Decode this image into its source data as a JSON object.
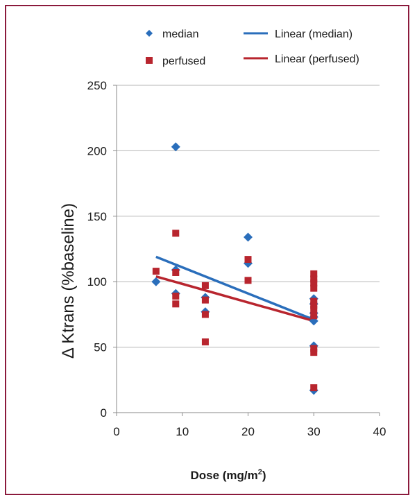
{
  "chart_data": {
    "type": "scatter",
    "xlabel": {
      "prefix": "Dose (mg/m",
      "sup": "2",
      "suffix": ")"
    },
    "ylabel": "Δ Ktrans (%baseline)",
    "xlim": [
      0,
      40
    ],
    "ylim": [
      0,
      250
    ],
    "xticks": [
      0,
      10,
      20,
      30,
      40
    ],
    "yticks": [
      0,
      50,
      100,
      150,
      200,
      250
    ],
    "grid": "horizontal",
    "legend_position": "top",
    "series": [
      {
        "name": "median",
        "marker": "diamond",
        "color": "#2a6ebb",
        "points": [
          [
            6,
            100
          ],
          [
            9,
            203
          ],
          [
            9,
            109
          ],
          [
            9,
            91
          ],
          [
            13.5,
            88
          ],
          [
            13.5,
            77
          ],
          [
            20,
            134
          ],
          [
            20,
            114
          ],
          [
            30,
            87
          ],
          [
            30,
            83
          ],
          [
            30,
            76
          ],
          [
            30,
            73
          ],
          [
            30,
            70
          ],
          [
            30,
            51
          ],
          [
            30,
            17
          ]
        ]
      },
      {
        "name": "perfused",
        "marker": "square",
        "color": "#b8252e",
        "points": [
          [
            6,
            108
          ],
          [
            9,
            137
          ],
          [
            9,
            107
          ],
          [
            9,
            89
          ],
          [
            9,
            83
          ],
          [
            13.5,
            97
          ],
          [
            13.5,
            86
          ],
          [
            13.5,
            75
          ],
          [
            13.5,
            54
          ],
          [
            20,
            117
          ],
          [
            20,
            101
          ],
          [
            30,
            106
          ],
          [
            30,
            102
          ],
          [
            30,
            99
          ],
          [
            30,
            95
          ],
          [
            30,
            85
          ],
          [
            30,
            82
          ],
          [
            30,
            79
          ],
          [
            30,
            74
          ],
          [
            30,
            49
          ],
          [
            30,
            46
          ],
          [
            30,
            19
          ]
        ]
      }
    ],
    "trendlines": [
      {
        "name": "Linear (median)",
        "color": "#2a6ebb",
        "x": [
          6,
          30
        ],
        "y": [
          119,
          71
        ]
      },
      {
        "name": "Linear (perfused)",
        "color": "#b8252e",
        "x": [
          6,
          30
        ],
        "y": [
          104,
          70
        ]
      }
    ]
  }
}
